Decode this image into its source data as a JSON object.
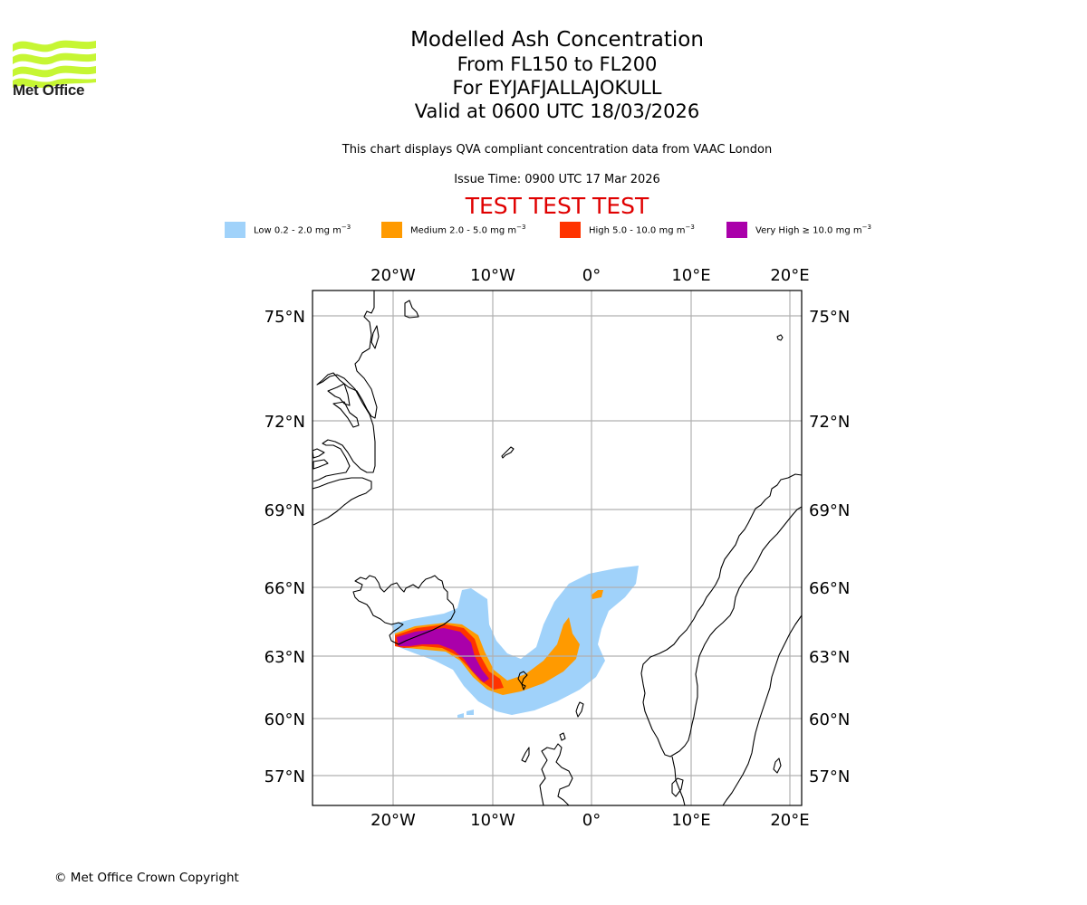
{
  "header": {
    "logo_text": "Met Office",
    "title": "Modelled Ash Concentration",
    "levels": "From FL150 to FL200",
    "volcano": "For EYJAFJALLAJOKULL",
    "valid": "Valid at 0600 UTC 18/03/2026",
    "description": "This chart displays QVA compliant concentration data from VAAC London",
    "issue_time": "Issue Time: 0900 UTC 17 Mar 2026",
    "test_banner": "TEST TEST TEST"
  },
  "legend": [
    {
      "label": "Low 0.2 - 2.0 mg m",
      "sup": "−3",
      "color": "#a0d2fa"
    },
    {
      "label": "Medium 2.0 - 5.0 mg m",
      "sup": "−3",
      "color": "#ff9a00"
    },
    {
      "label": "High 5.0 - 10.0 mg m",
      "sup": "−3",
      "color": "#ff3300"
    },
    {
      "label": "Very High ≥ 10.0 mg m",
      "sup": "−3",
      "color": "#aa00aa"
    }
  ],
  "map": {
    "lon_ticks": [
      "20°W",
      "10°W",
      "0°",
      "10°E",
      "20°E"
    ],
    "lat_ticks": [
      "75°N",
      "72°N",
      "69°N",
      "66°N",
      "63°N",
      "60°N",
      "57°N"
    ],
    "gridline_color": "#b0b0b0",
    "coast_color": "#000000"
  },
  "footer": {
    "copyright": "© Met Office Crown Copyright"
  }
}
